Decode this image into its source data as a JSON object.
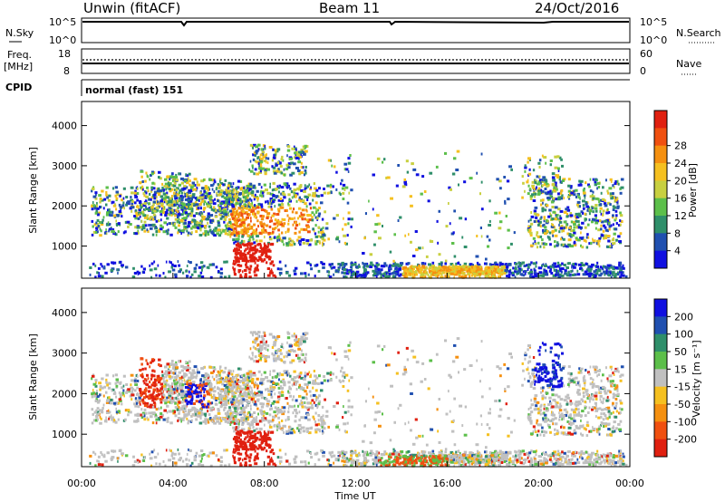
{
  "header": {
    "site_title": "Unwin (fitACF)",
    "beam": "Beam 11",
    "date": "24/Oct/2016"
  },
  "panels": {
    "nsky": {
      "label": "N.Sky",
      "tick_high": "10^5",
      "tick_low": "10^0",
      "right_label": "N.Search"
    },
    "freq": {
      "label_line1": "Freq.",
      "label_line2": "[MHz]",
      "left_ticks": [
        "18",
        "8"
      ],
      "right_ticks": [
        "60",
        "0"
      ],
      "right_label": "Nave"
    },
    "cpid": {
      "label": "CPID",
      "value": "normal (fast) 151"
    }
  },
  "colors": {
    "power": [
      "#1010e0",
      "#2050b0",
      "#2f8f6a",
      "#5cbf4a",
      "#c8d040",
      "#f5c020",
      "#f59010",
      "#f05010",
      "#e02010"
    ],
    "velocity": [
      "#1010e0",
      "#2050b0",
      "#2f8f6a",
      "#5cbf4a",
      "#c0c0c0",
      "#f5c020",
      "#f59010",
      "#f05010",
      "#e02010"
    ]
  },
  "chart_data": [
    {
      "type": "heatmap",
      "quantity": "power",
      "ylabel": "Slant Range [km]",
      "yticks": [
        1000,
        2000,
        3000,
        4000
      ],
      "ylim": [
        200,
        4600
      ],
      "xlim": [
        0,
        24
      ],
      "colorbar_label": "Power [dB]",
      "colorbar_ticks": [
        "4",
        "8",
        "12",
        "16",
        "20",
        "24",
        "28"
      ]
    },
    {
      "type": "heatmap",
      "quantity": "velocity",
      "ylabel": "Slant Range [km]",
      "yticks": [
        1000,
        2000,
        3000,
        4000
      ],
      "ylim": [
        200,
        4600
      ],
      "xlim": [
        0,
        24
      ],
      "xlabel": "Time UT",
      "xtick_labels": [
        "00:00",
        "04:00",
        "08:00",
        "12:00",
        "16:00",
        "20:00",
        "00:00"
      ],
      "colorbar_label": "Velocity [m s⁻¹]",
      "colorbar_ticks": [
        "200",
        "100",
        "50",
        "15",
        "-15",
        "-50",
        "-100",
        "-200"
      ]
    }
  ]
}
